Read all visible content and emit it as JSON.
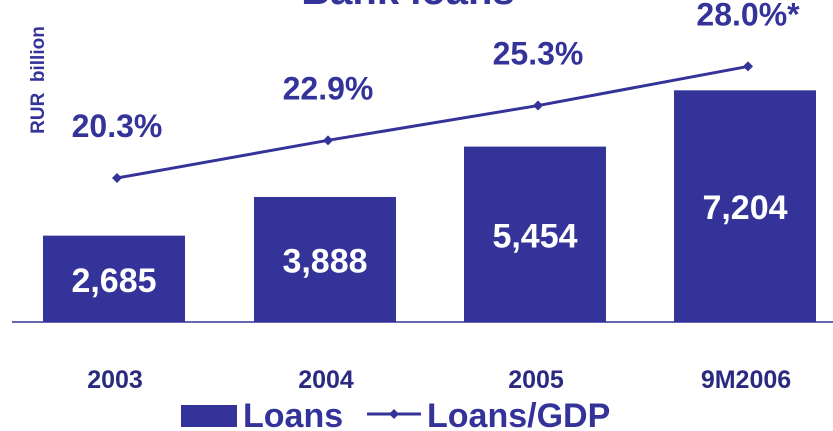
{
  "chart_data": {
    "type": "bar",
    "title": "Bank loans",
    "ylabel": "RUR  billion",
    "categories": [
      "2003",
      "2004",
      "2005",
      "9M2006"
    ],
    "series": [
      {
        "name": "Loans",
        "type": "bar",
        "values": [
          2685,
          3888,
          5454,
          7204
        ],
        "labels": [
          "2,685",
          "3,888",
          "5,454",
          "7,204"
        ],
        "color": "#333399"
      },
      {
        "name": "Loans/GDP",
        "type": "line",
        "values": [
          20.3,
          22.9,
          25.3,
          28.0
        ],
        "labels": [
          "20.3%",
          "22.9%",
          "25.3%",
          "28.0%*"
        ],
        "unit": "%",
        "color": "#333399"
      }
    ],
    "ylim": [
      0,
      8000
    ],
    "y2lim": [
      10,
      32
    ],
    "grid": false,
    "legend": "bottom"
  },
  "colors": {
    "bar": "#333399",
    "bar_label": "#ffffff",
    "text": "#333399",
    "category": "#2a2a80"
  }
}
